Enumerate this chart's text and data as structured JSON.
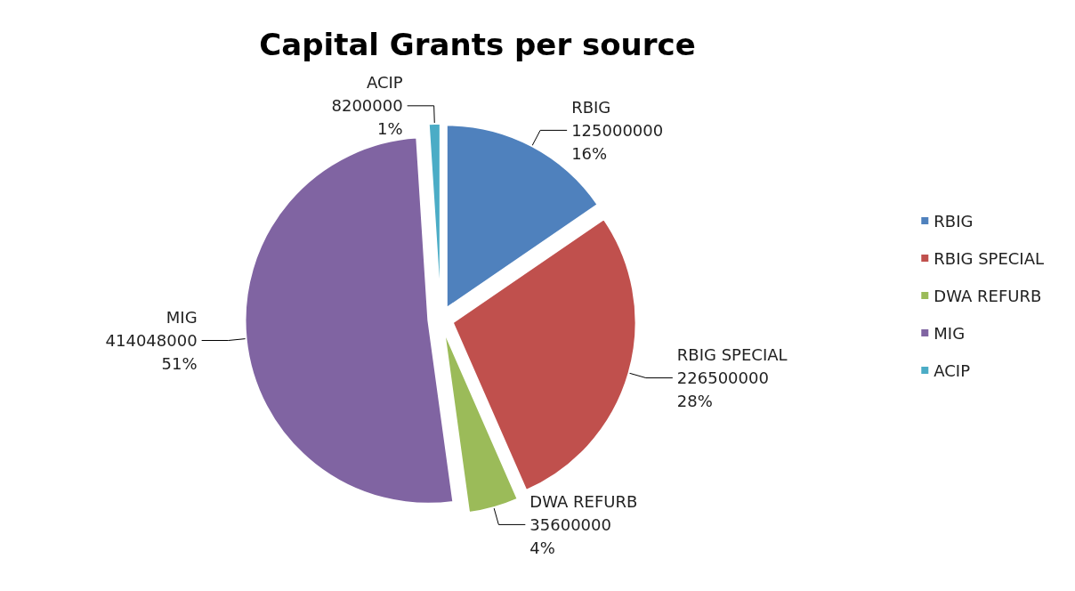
{
  "chart_data": {
    "type": "pie",
    "title": "Capital Grants per source",
    "categories": [
      "RBIG",
      "RBIG SPECIAL",
      "DWA REFURB",
      "MIG",
      "ACIP"
    ],
    "values": [
      125000000,
      226500000,
      35600000,
      414048000,
      8200000
    ],
    "colors": [
      "#4f81bd",
      "#c0504d",
      "#9bbb59",
      "#8064a2",
      "#4bacc6"
    ],
    "value_labels": [
      "125000000\n16%",
      "226500000\n28%",
      "35600000\n4%",
      "414048000\n51%",
      "8200000\n1%"
    ],
    "legend": "right"
  }
}
